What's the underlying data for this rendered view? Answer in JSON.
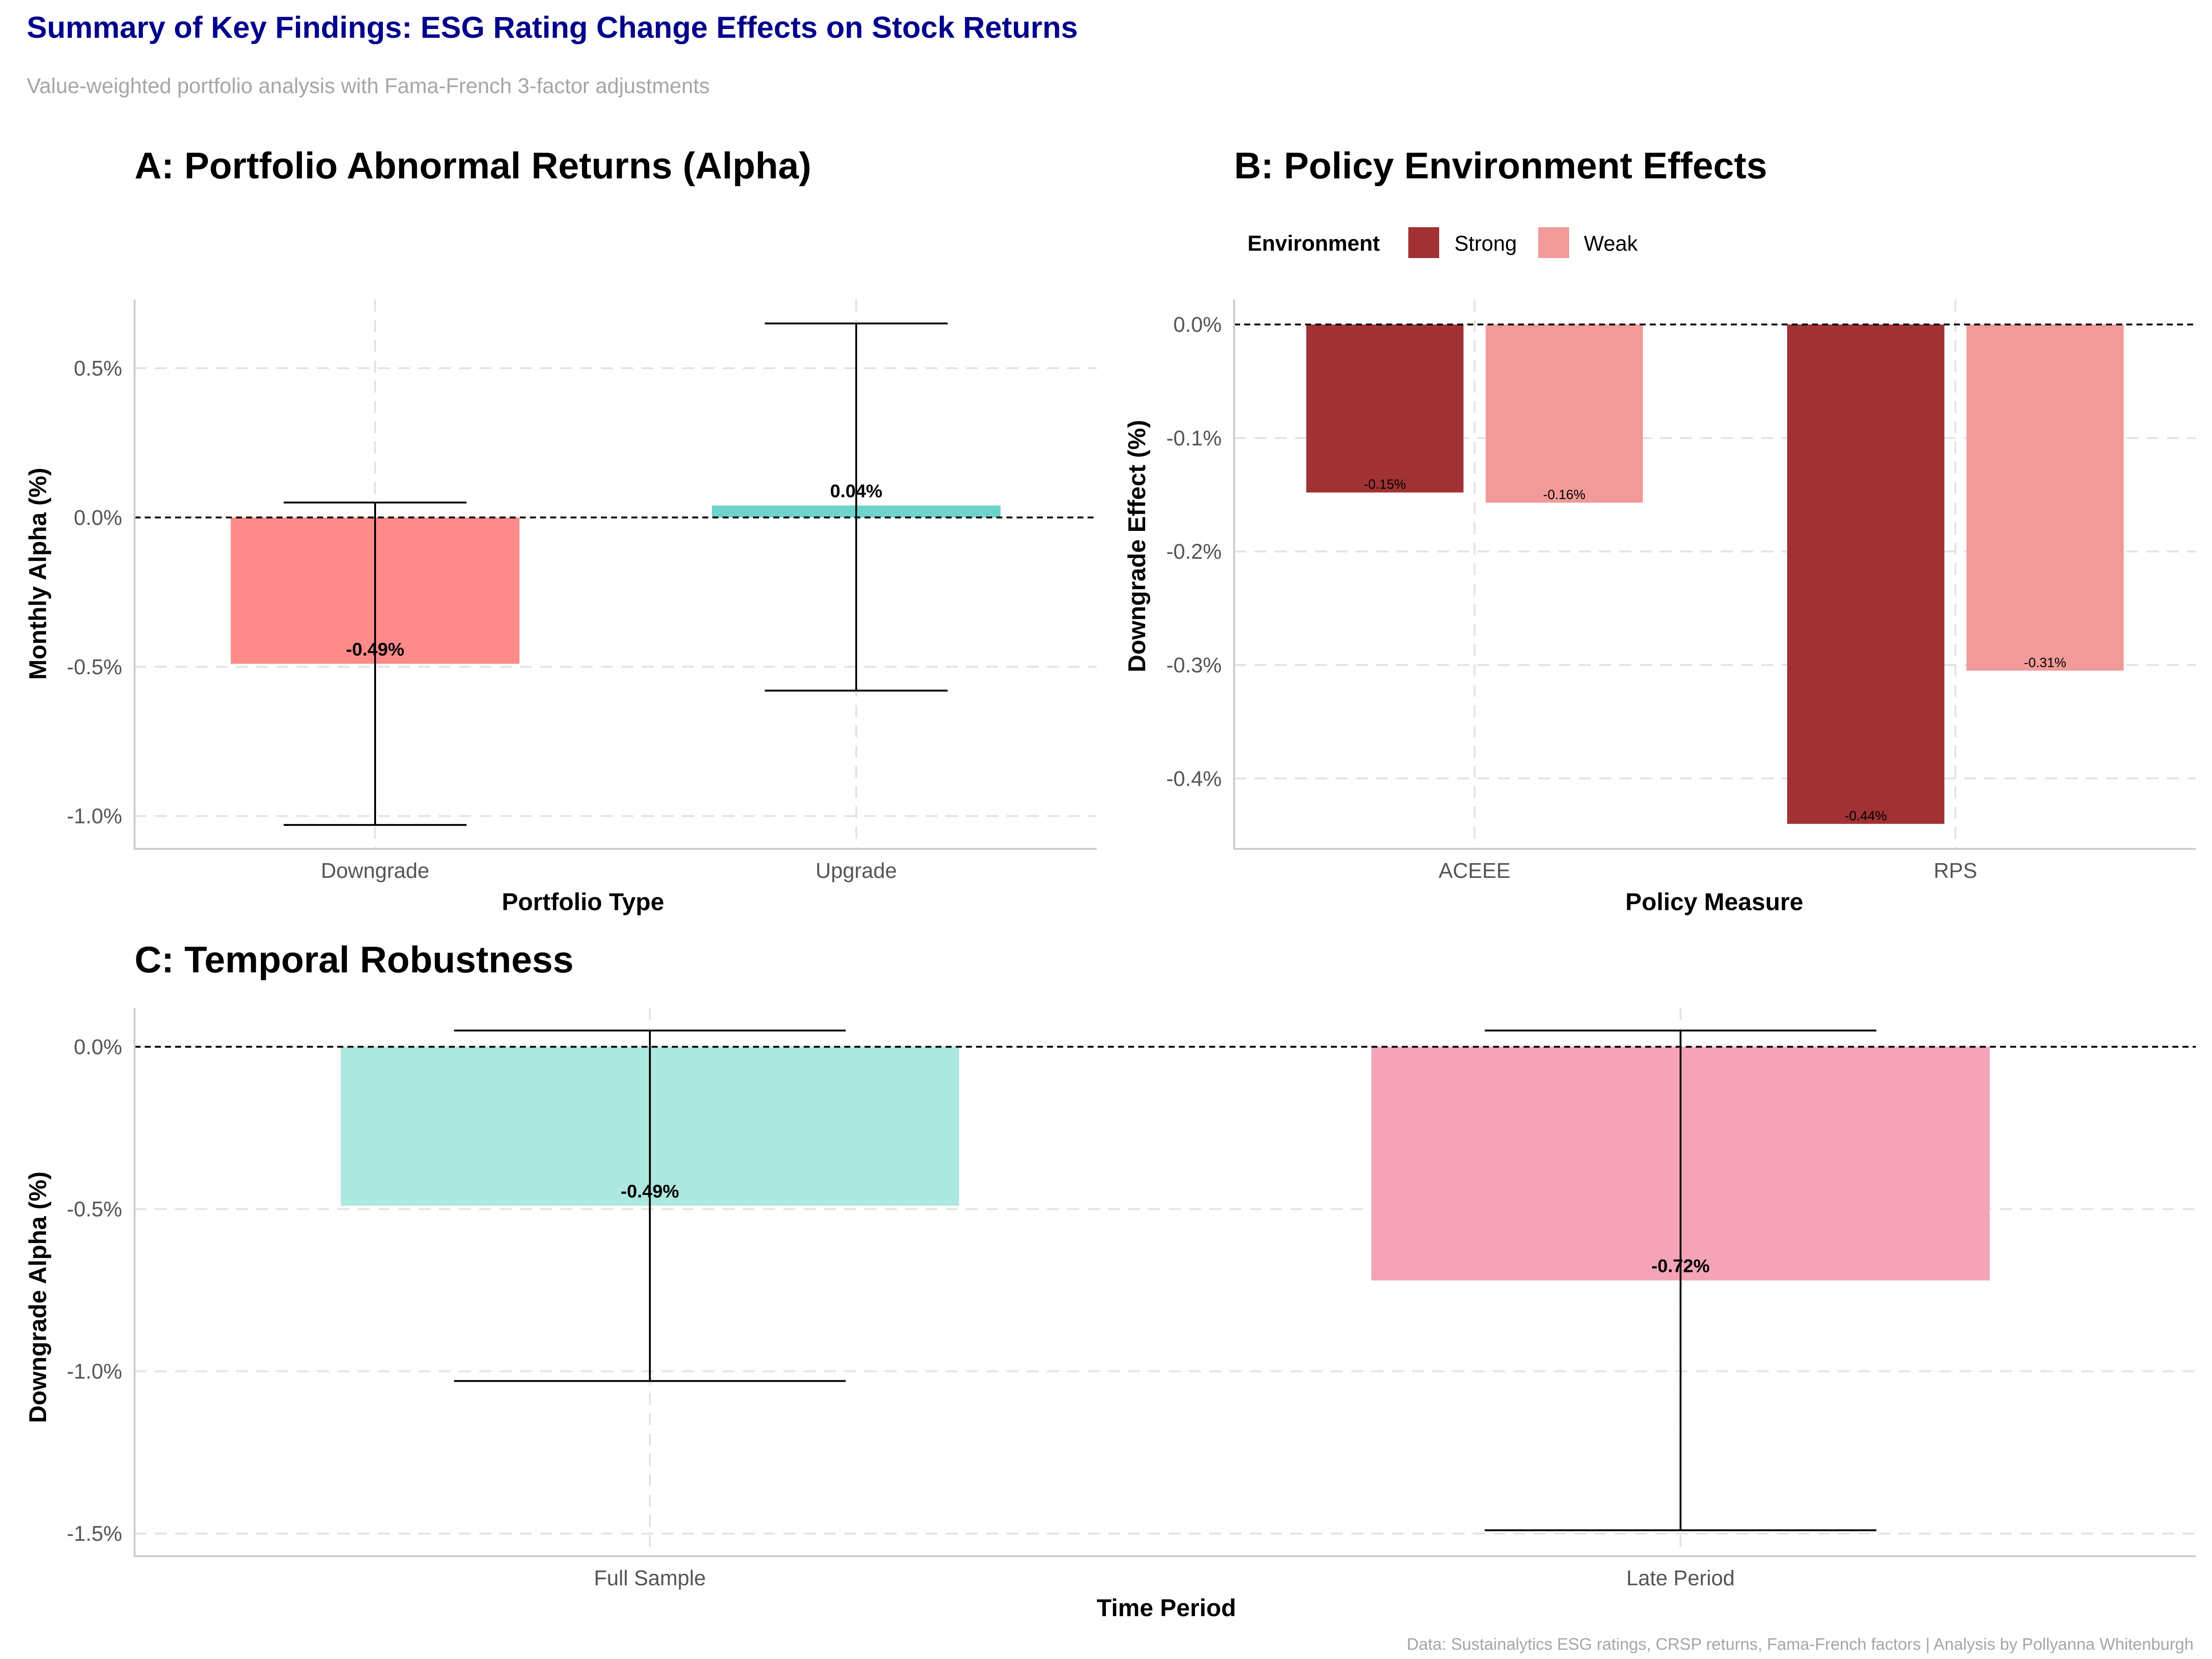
{
  "figure": {
    "title": "Summary of Key Findings: ESG Rating Change Effects on Stock Returns",
    "subtitle": "Value-weighted portfolio analysis with Fama-French 3-factor adjustments",
    "caption": "Data: Sustainalytics ESG ratings, CRSP returns, Fama-French factors | Analysis by Pollyanna Whitenburgh",
    "colors": {
      "title": "#00008b",
      "subtitle": "#a6a6a6",
      "caption": "#a6a6a6"
    }
  },
  "chart_data": [
    {
      "type": "bar",
      "title": "A: Portfolio Abnormal Returns (Alpha)",
      "xlabel": "Portfolio Type",
      "ylabel": "Monthly Alpha (%)",
      "categories": [
        "Downgrade",
        "Upgrade"
      ],
      "values": [
        -0.49,
        0.04
      ],
      "error_bars": {
        "lower": [
          -1.03,
          -0.58
        ],
        "upper": [
          0.05,
          0.65
        ]
      },
      "data_labels": [
        "-0.49%",
        "0.04%"
      ],
      "colors": [
        "#ff8a8a",
        "#6dd3cb"
      ],
      "ylim": [
        -1.11,
        0.73
      ],
      "yticks": [
        -1.0,
        -0.5,
        0.0,
        0.5
      ],
      "ytick_labels": [
        "-1.0%",
        "-0.5%",
        "0.0%",
        "0.5%"
      ],
      "reference_line": 0,
      "grid": true
    },
    {
      "type": "bar",
      "title": "B: Policy Environment Effects",
      "xlabel": "Policy Measure",
      "ylabel": "Downgrade Effect (%)",
      "categories": [
        "ACEEE",
        "RPS"
      ],
      "legend_title": "Environment",
      "legend_position": "top-left",
      "series": [
        {
          "name": "Strong",
          "color": "#a13234",
          "values": [
            -0.148,
            -0.44
          ],
          "data_labels": [
            "-0.15%",
            "-0.44%"
          ]
        },
        {
          "name": "Weak",
          "color": "#f29a99",
          "values": [
            -0.157,
            -0.305
          ],
          "data_labels": [
            "-0.16%",
            "-0.31%"
          ]
        }
      ],
      "ylim": [
        -0.462,
        0.022
      ],
      "yticks": [
        -0.4,
        -0.3,
        -0.2,
        -0.1,
        0.0
      ],
      "ytick_labels": [
        "-0.4%",
        "-0.3%",
        "-0.2%",
        "-0.1%",
        "0.0%"
      ],
      "reference_line": 0,
      "grid": true
    },
    {
      "type": "bar",
      "title": "C: Temporal Robustness",
      "xlabel": "Time Period",
      "ylabel": "Downgrade Alpha (%)",
      "categories": [
        "Full Sample",
        "Late Period"
      ],
      "values": [
        -0.49,
        -0.72
      ],
      "error_bars": {
        "lower": [
          -1.03,
          -1.49
        ],
        "upper": [
          0.05,
          0.05
        ]
      },
      "data_labels": [
        "-0.49%",
        "-0.72%"
      ],
      "colors": [
        "#ace8df",
        "#f5a3b7"
      ],
      "ylim": [
        -1.57,
        0.12
      ],
      "yticks": [
        -1.5,
        -1.0,
        -0.5,
        0.0
      ],
      "ytick_labels": [
        "-1.5%",
        "-1.0%",
        "-0.5%",
        "0.0%"
      ],
      "reference_line": 0,
      "grid": true
    }
  ]
}
